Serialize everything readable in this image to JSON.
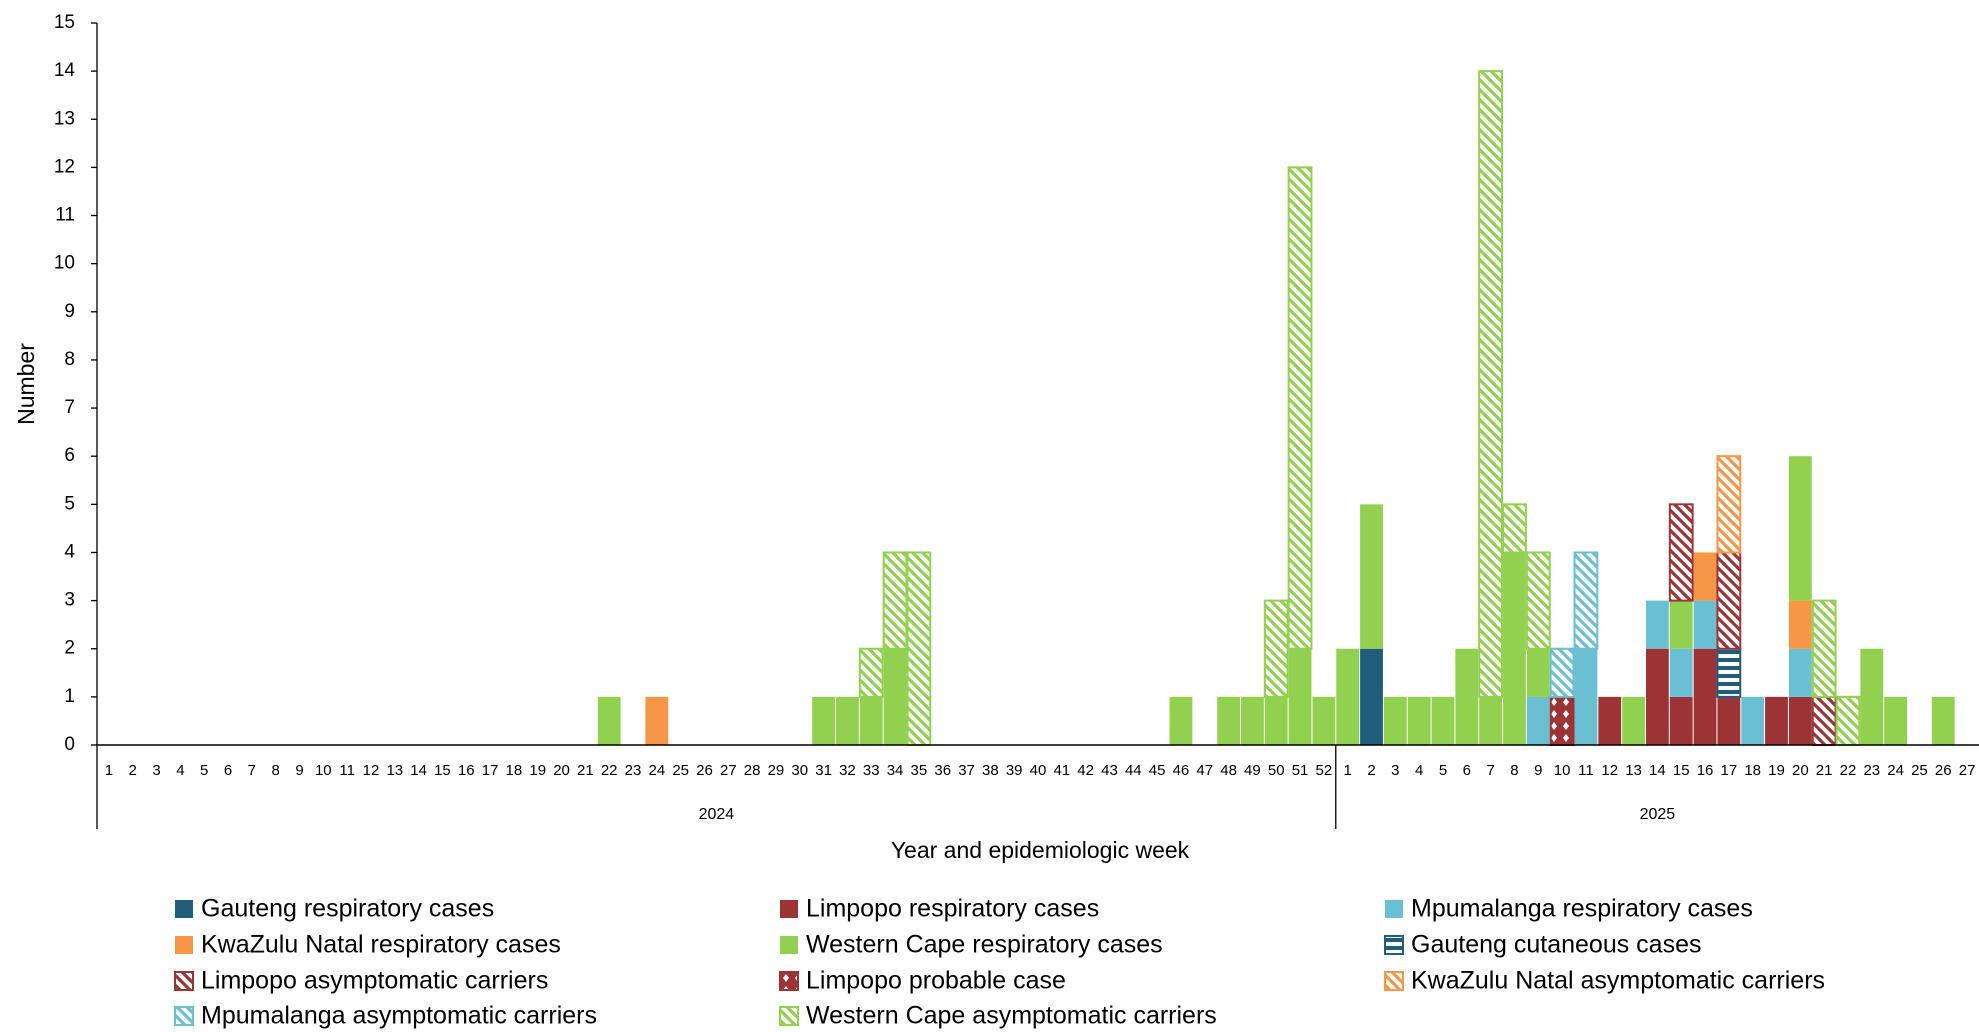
{
  "chart_data": {
    "type": "stacked_bar",
    "y_label": "Number",
    "x_label": "Year and epidemiologic week",
    "groups": [
      {
        "label": "2024",
        "weeks": [
          "1",
          "2",
          "3",
          "4",
          "5",
          "6",
          "7",
          "8",
          "9",
          "10",
          "11",
          "12",
          "13",
          "14",
          "15",
          "16",
          "17",
          "18",
          "19",
          "20",
          "21",
          "22",
          "23",
          "24",
          "25",
          "26",
          "27",
          "28",
          "29",
          "30",
          "31",
          "32",
          "33",
          "34",
          "35",
          "36",
          "37",
          "38",
          "39",
          "40",
          "41",
          "42",
          "43",
          "44",
          "45",
          "46",
          "47",
          "48",
          "49",
          "50",
          "51",
          "52"
        ]
      },
      {
        "label": "2025",
        "weeks": [
          "1",
          "2",
          "3",
          "4",
          "5",
          "6",
          "7",
          "8",
          "9",
          "10",
          "11",
          "12",
          "13",
          "14",
          "15",
          "16",
          "17",
          "18",
          "19",
          "20",
          "21",
          "22",
          "23",
          "24",
          "25",
          "26",
          "27"
        ]
      }
    ],
    "ylim": [
      0,
      15
    ],
    "yticks": [
      0,
      1,
      2,
      3,
      4,
      5,
      6,
      7,
      8,
      9,
      10,
      11,
      12,
      13,
      14,
      15
    ],
    "series": [
      {
        "name": "Gauteng respiratory cases",
        "color": "#215e7c",
        "pattern": "solid",
        "values": [
          0,
          0,
          0,
          0,
          0,
          0,
          0,
          0,
          0,
          0,
          0,
          0,
          0,
          0,
          0,
          0,
          0,
          0,
          0,
          0,
          0,
          0,
          0,
          0,
          0,
          0,
          0,
          0,
          0,
          0,
          0,
          0,
          0,
          0,
          0,
          0,
          0,
          0,
          0,
          0,
          0,
          0,
          0,
          0,
          0,
          0,
          0,
          0,
          0,
          0,
          0,
          0,
          0,
          2,
          0,
          0,
          0,
          0,
          0,
          0,
          0,
          0,
          0,
          0,
          0,
          0,
          0,
          0,
          0,
          0,
          0,
          0,
          0,
          0,
          0,
          0,
          0,
          0,
          0
        ]
      },
      {
        "name": "Limpopo respiratory cases",
        "color": "#9c3436",
        "pattern": "solid",
        "values": [
          0,
          0,
          0,
          0,
          0,
          0,
          0,
          0,
          0,
          0,
          0,
          0,
          0,
          0,
          0,
          0,
          0,
          0,
          0,
          0,
          0,
          0,
          0,
          0,
          0,
          0,
          0,
          0,
          0,
          0,
          0,
          0,
          0,
          0,
          0,
          0,
          0,
          0,
          0,
          0,
          0,
          0,
          0,
          0,
          0,
          0,
          0,
          0,
          0,
          0,
          0,
          0,
          0,
          0,
          0,
          0,
          0,
          0,
          0,
          0,
          0,
          0,
          0,
          1,
          0,
          2,
          1,
          2,
          1,
          0,
          1,
          1,
          0,
          0,
          0,
          0,
          0,
          0,
          0
        ]
      },
      {
        "name": "Mpumalanga respiratory cases",
        "color": "#6bbfd2",
        "pattern": "solid",
        "values": [
          0,
          0,
          0,
          0,
          0,
          0,
          0,
          0,
          0,
          0,
          0,
          0,
          0,
          0,
          0,
          0,
          0,
          0,
          0,
          0,
          0,
          0,
          0,
          0,
          0,
          0,
          0,
          0,
          0,
          0,
          0,
          0,
          0,
          0,
          0,
          0,
          0,
          0,
          0,
          0,
          0,
          0,
          0,
          0,
          0,
          0,
          0,
          0,
          0,
          0,
          0,
          0,
          0,
          0,
          0,
          0,
          0,
          0,
          0,
          0,
          1,
          0,
          2,
          0,
          0,
          1,
          1,
          1,
          0,
          1,
          0,
          1,
          0,
          0,
          0,
          0,
          0,
          0,
          0
        ]
      },
      {
        "name": "KwaZulu Natal respiratory cases",
        "color": "#f79646",
        "pattern": "solid",
        "values": [
          0,
          0,
          0,
          0,
          0,
          0,
          0,
          0,
          0,
          0,
          0,
          0,
          0,
          0,
          0,
          0,
          0,
          0,
          0,
          0,
          0,
          0,
          0,
          1,
          0,
          0,
          0,
          0,
          0,
          0,
          0,
          0,
          0,
          0,
          0,
          0,
          0,
          0,
          0,
          0,
          0,
          0,
          0,
          0,
          0,
          0,
          0,
          0,
          0,
          0,
          0,
          0,
          0,
          0,
          0,
          0,
          0,
          0,
          0,
          0,
          0,
          0,
          0,
          0,
          0,
          0,
          0,
          1,
          0,
          0,
          0,
          1,
          0,
          0,
          0,
          0,
          0,
          0,
          0
        ]
      },
      {
        "name": "Western Cape respiratory cases",
        "color": "#92d050",
        "pattern": "solid",
        "values": [
          0,
          0,
          0,
          0,
          0,
          0,
          0,
          0,
          0,
          0,
          0,
          0,
          0,
          0,
          0,
          0,
          0,
          0,
          0,
          0,
          0,
          1,
          0,
          0,
          0,
          0,
          0,
          0,
          0,
          0,
          1,
          1,
          1,
          2,
          0,
          0,
          0,
          0,
          0,
          0,
          0,
          0,
          0,
          0,
          0,
          1,
          0,
          1,
          1,
          1,
          2,
          1,
          2,
          3,
          1,
          1,
          1,
          2,
          1,
          4,
          1,
          0,
          0,
          0,
          1,
          0,
          1,
          0,
          0,
          0,
          0,
          3,
          0,
          0,
          2,
          1,
          0,
          1,
          0
        ]
      },
      {
        "name": "Gauteng cutaneous cases",
        "color": "#215e7c",
        "pattern": "horizontal",
        "values": [
          0,
          0,
          0,
          0,
          0,
          0,
          0,
          0,
          0,
          0,
          0,
          0,
          0,
          0,
          0,
          0,
          0,
          0,
          0,
          0,
          0,
          0,
          0,
          0,
          0,
          0,
          0,
          0,
          0,
          0,
          0,
          0,
          0,
          0,
          0,
          0,
          0,
          0,
          0,
          0,
          0,
          0,
          0,
          0,
          0,
          0,
          0,
          0,
          0,
          0,
          0,
          0,
          0,
          0,
          0,
          0,
          0,
          0,
          0,
          0,
          0,
          0,
          0,
          0,
          0,
          0,
          0,
          0,
          1,
          0,
          0,
          0,
          0,
          0,
          0,
          0,
          0,
          0,
          0
        ]
      },
      {
        "name": "Limpopo asymptomatic carriers",
        "color": "#9c3436",
        "pattern": "diagonal",
        "values": [
          0,
          0,
          0,
          0,
          0,
          0,
          0,
          0,
          0,
          0,
          0,
          0,
          0,
          0,
          0,
          0,
          0,
          0,
          0,
          0,
          0,
          0,
          0,
          0,
          0,
          0,
          0,
          0,
          0,
          0,
          0,
          0,
          0,
          0,
          0,
          0,
          0,
          0,
          0,
          0,
          0,
          0,
          0,
          0,
          0,
          0,
          0,
          0,
          0,
          0,
          0,
          0,
          0,
          0,
          0,
          0,
          0,
          0,
          0,
          0,
          0,
          0,
          0,
          0,
          0,
          0,
          2,
          0,
          2,
          0,
          0,
          0,
          1,
          0,
          0,
          0,
          0,
          0,
          0
        ]
      },
      {
        "name": "Limpopo probable case",
        "color": "#9c3436",
        "pattern": "dots",
        "values": [
          0,
          0,
          0,
          0,
          0,
          0,
          0,
          0,
          0,
          0,
          0,
          0,
          0,
          0,
          0,
          0,
          0,
          0,
          0,
          0,
          0,
          0,
          0,
          0,
          0,
          0,
          0,
          0,
          0,
          0,
          0,
          0,
          0,
          0,
          0,
          0,
          0,
          0,
          0,
          0,
          0,
          0,
          0,
          0,
          0,
          0,
          0,
          0,
          0,
          0,
          0,
          0,
          0,
          0,
          0,
          0,
          0,
          0,
          0,
          0,
          0,
          1,
          0,
          0,
          0,
          0,
          0,
          0,
          0,
          0,
          0,
          0,
          0,
          0,
          0,
          0,
          0,
          0,
          0
        ]
      },
      {
        "name": "KwaZulu Natal asymptomatic carriers",
        "color": "#f79646",
        "pattern": "diagonal",
        "values": [
          0,
          0,
          0,
          0,
          0,
          0,
          0,
          0,
          0,
          0,
          0,
          0,
          0,
          0,
          0,
          0,
          0,
          0,
          0,
          0,
          0,
          0,
          0,
          0,
          0,
          0,
          0,
          0,
          0,
          0,
          0,
          0,
          0,
          0,
          0,
          0,
          0,
          0,
          0,
          0,
          0,
          0,
          0,
          0,
          0,
          0,
          0,
          0,
          0,
          0,
          0,
          0,
          0,
          0,
          0,
          0,
          0,
          0,
          0,
          0,
          0,
          0,
          0,
          0,
          0,
          0,
          0,
          0,
          2,
          0,
          0,
          0,
          0,
          0,
          0,
          0,
          0,
          0,
          0
        ]
      },
      {
        "name": "Mpumalanga asymptomatic carriers",
        "color": "#6bbfd2",
        "pattern": "diagonal",
        "values": [
          0,
          0,
          0,
          0,
          0,
          0,
          0,
          0,
          0,
          0,
          0,
          0,
          0,
          0,
          0,
          0,
          0,
          0,
          0,
          0,
          0,
          0,
          0,
          0,
          0,
          0,
          0,
          0,
          0,
          0,
          0,
          0,
          0,
          0,
          0,
          0,
          0,
          0,
          0,
          0,
          0,
          0,
          0,
          0,
          0,
          0,
          0,
          0,
          0,
          0,
          0,
          0,
          0,
          0,
          0,
          0,
          0,
          0,
          0,
          0,
          0,
          1,
          2,
          0,
          0,
          0,
          0,
          0,
          0,
          0,
          0,
          0,
          0,
          0,
          0,
          0,
          0,
          0,
          0
        ]
      },
      {
        "name": "Western Cape asymptomatic carriers",
        "color": "#92d050",
        "pattern": "diagonal",
        "values": [
          0,
          0,
          0,
          0,
          0,
          0,
          0,
          0,
          0,
          0,
          0,
          0,
          0,
          0,
          0,
          0,
          0,
          0,
          0,
          0,
          0,
          0,
          0,
          0,
          0,
          0,
          0,
          0,
          0,
          0,
          0,
          0,
          1,
          2,
          4,
          0,
          0,
          0,
          0,
          0,
          0,
          0,
          0,
          0,
          0,
          0,
          0,
          0,
          0,
          2,
          10,
          0,
          0,
          0,
          0,
          0,
          0,
          0,
          13,
          1,
          2,
          0,
          0,
          0,
          0,
          0,
          0,
          0,
          0,
          0,
          0,
          0,
          2,
          1,
          0,
          0,
          0,
          0,
          0
        ]
      }
    ]
  }
}
